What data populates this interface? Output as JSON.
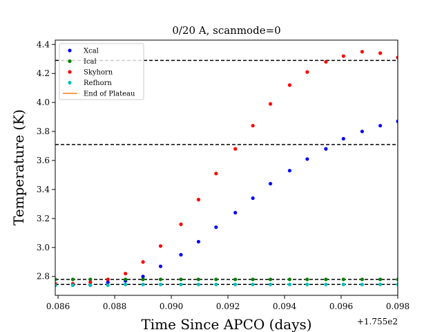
{
  "chart_data": {
    "type": "scatter",
    "title": "0/20 A, scanmode=0",
    "xlabel": "Time Since APCO (days)",
    "ylabel": "Temperature (K)",
    "x_offset_label": "+1.755e2",
    "xlim": [
      0.0859,
      0.098
    ],
    "ylim": [
      2.67,
      4.43
    ],
    "x_ticks": [
      0.086,
      0.088,
      0.09,
      0.092,
      0.094,
      0.096,
      0.098
    ],
    "x_tick_labels": [
      "0.086",
      "0.088",
      "0.090",
      "0.092",
      "0.094",
      "0.096",
      "0.098"
    ],
    "y_ticks": [
      2.8,
      3.0,
      3.2,
      3.4,
      3.6,
      3.8,
      4.0,
      4.2,
      4.4
    ],
    "y_tick_labels": [
      "2.8",
      "3.0",
      "3.2",
      "3.4",
      "3.6",
      "3.8",
      "4.0",
      "4.2",
      "4.4"
    ],
    "grid": false,
    "legend_position": "top-left",
    "x": [
      0.0859,
      0.08652,
      0.08714,
      0.08776,
      0.08838,
      0.089,
      0.08962,
      0.09034,
      0.09096,
      0.09158,
      0.09226,
      0.09288,
      0.0935,
      0.09418,
      0.0948,
      0.09546,
      0.09608,
      0.09674,
      0.09738,
      0.098
    ],
    "series": [
      {
        "name": "Xcal",
        "color": "#0000ff",
        "values": [
          2.74,
          2.74,
          2.74,
          2.76,
          2.77,
          2.8,
          2.87,
          2.95,
          3.04,
          3.14,
          3.24,
          3.34,
          3.44,
          3.53,
          3.61,
          3.68,
          3.75,
          3.8,
          3.84,
          3.87
        ]
      },
      {
        "name": "Ical",
        "color": "#008000",
        "values": [
          2.78,
          2.78,
          2.78,
          2.78,
          2.78,
          2.78,
          2.78,
          2.78,
          2.78,
          2.78,
          2.78,
          2.78,
          2.78,
          2.78,
          2.78,
          2.78,
          2.78,
          2.78,
          2.78,
          2.78
        ]
      },
      {
        "name": "Skyhorn",
        "color": "#ff0000",
        "values": [
          2.75,
          2.75,
          2.76,
          2.78,
          2.82,
          2.9,
          3.01,
          3.16,
          3.33,
          3.51,
          3.68,
          3.84,
          3.99,
          4.12,
          4.21,
          4.28,
          4.32,
          4.35,
          4.34,
          4.31
        ]
      },
      {
        "name": "Refhorn",
        "color": "#00bfbf",
        "values": [
          2.74,
          2.74,
          2.74,
          2.74,
          2.745,
          2.745,
          2.745,
          2.745,
          2.745,
          2.745,
          2.745,
          2.745,
          2.745,
          2.745,
          2.745,
          2.745,
          2.745,
          2.745,
          2.745,
          2.745
        ]
      }
    ],
    "hlines": [
      4.29,
      3.71,
      2.78,
      2.745
    ],
    "hline_color": "#000000",
    "vline": {
      "name": "End of Plateau",
      "x": 0.098,
      "color": "#ff7f0e"
    }
  }
}
